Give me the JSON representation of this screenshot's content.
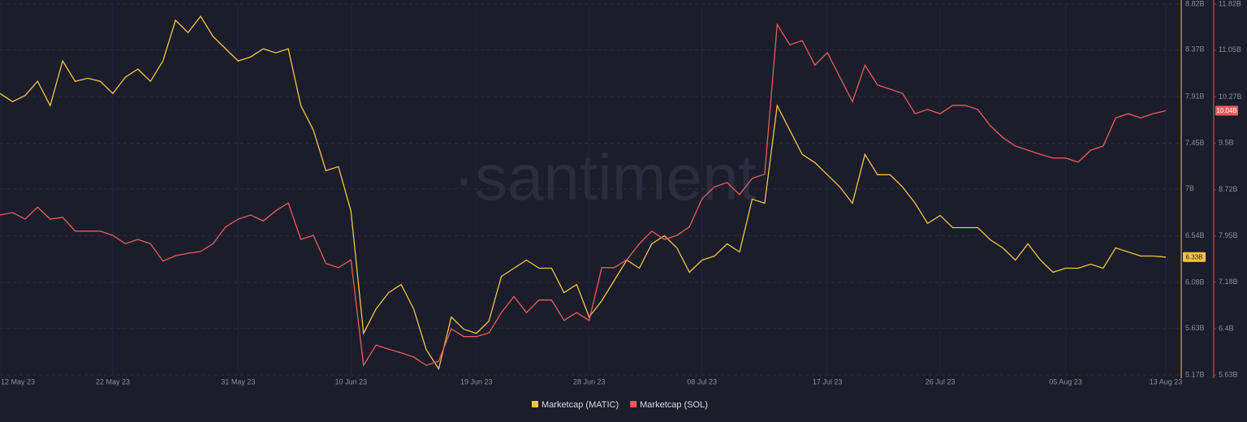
{
  "chart_data": {
    "type": "line",
    "watermark": "·santiment",
    "categories": [
      "12 May 23",
      null,
      null,
      null,
      null,
      null,
      null,
      null,
      null,
      "22 May 23",
      null,
      null,
      null,
      null,
      null,
      null,
      null,
      null,
      null,
      "31 May 23",
      null,
      null,
      null,
      null,
      null,
      null,
      null,
      null,
      "10 Jun 23",
      null,
      null,
      null,
      null,
      null,
      null,
      null,
      null,
      null,
      "19 Jun 23",
      null,
      null,
      null,
      null,
      null,
      null,
      null,
      null,
      "28 Jun 23",
      null,
      null,
      null,
      null,
      null,
      null,
      null,
      null,
      "08 Jul 23",
      null,
      null,
      null,
      null,
      null,
      null,
      null,
      null,
      null,
      "17 Jul 23",
      null,
      null,
      null,
      null,
      null,
      null,
      null,
      null,
      "26 Jul 23",
      null,
      null,
      null,
      null,
      null,
      null,
      null,
      null,
      null,
      "05 Aug 23",
      null,
      null,
      null,
      null,
      null,
      null,
      null,
      "13 Aug 23"
    ],
    "series": [
      {
        "name": "Marketcap (MATIC)",
        "color": "#f5c342",
        "axis": "y",
        "values": [
          7.94,
          7.86,
          7.92,
          8.06,
          7.82,
          8.26,
          8.06,
          8.09,
          8.06,
          7.94,
          8.1,
          8.18,
          8.06,
          8.26,
          8.66,
          8.54,
          8.7,
          8.5,
          8.38,
          8.26,
          8.3,
          8.38,
          8.34,
          8.38,
          7.82,
          7.58,
          7.18,
          7.22,
          6.78,
          5.58,
          5.82,
          5.98,
          6.06,
          5.82,
          5.42,
          5.23,
          5.74,
          5.62,
          5.58,
          5.7,
          6.14,
          6.22,
          6.3,
          6.22,
          6.22,
          5.98,
          6.06,
          5.74,
          5.9,
          6.1,
          6.3,
          6.22,
          6.46,
          6.54,
          6.42,
          6.18,
          6.3,
          6.34,
          6.46,
          6.38,
          6.9,
          6.86,
          7.82,
          7.58,
          7.34,
          7.26,
          7.14,
          7.02,
          6.86,
          7.34,
          7.14,
          7.14,
          7.02,
          6.86,
          6.66,
          6.74,
          6.62,
          6.62,
          6.62,
          6.5,
          6.42,
          6.3,
          6.46,
          6.3,
          6.18,
          6.22,
          6.22,
          6.26,
          6.22,
          6.42,
          6.38,
          6.34,
          6.34,
          6.33
        ],
        "value_labels": [
          null,
          null,
          null,
          null,
          null,
          null,
          null,
          null,
          null,
          null,
          null,
          null,
          null,
          null,
          null,
          null,
          null,
          null,
          null,
          null,
          null,
          null,
          null,
          null,
          null,
          null,
          null,
          null,
          null,
          null,
          null,
          null,
          null,
          null,
          null,
          null,
          null,
          null,
          null,
          null,
          null,
          null,
          null,
          null,
          null,
          null,
          null,
          null,
          null,
          null,
          null,
          null,
          null,
          null,
          null,
          null,
          null,
          null,
          null,
          null,
          null,
          null,
          null,
          null,
          null,
          null,
          null,
          null,
          null,
          null,
          null,
          null,
          null,
          null,
          null,
          null,
          null,
          null,
          null,
          null,
          null,
          null,
          null,
          null,
          null,
          null,
          null,
          null,
          null,
          null,
          null,
          null,
          null,
          "6.33B"
        ]
      },
      {
        "name": "Marketcap (SOL)",
        "color": "#ea5b5b",
        "axis": "y2",
        "values": [
          8.3,
          8.34,
          8.23,
          8.43,
          8.23,
          8.26,
          8.03,
          8.03,
          8.03,
          7.96,
          7.82,
          7.89,
          7.82,
          7.53,
          7.62,
          7.66,
          7.69,
          7.82,
          8.1,
          8.23,
          8.3,
          8.2,
          8.37,
          8.5,
          7.89,
          7.96,
          7.49,
          7.42,
          7.55,
          5.79,
          6.13,
          6.06,
          6.0,
          5.93,
          5.79,
          5.86,
          6.4,
          6.27,
          6.27,
          6.33,
          6.67,
          6.94,
          6.67,
          6.88,
          6.88,
          6.54,
          6.67,
          6.54,
          7.42,
          7.42,
          7.55,
          7.82,
          8.03,
          7.89,
          7.96,
          8.1,
          8.57,
          8.77,
          8.84,
          8.64,
          8.91,
          8.98,
          11.48,
          11.14,
          11.21,
          10.8,
          11.01,
          10.6,
          10.19,
          10.8,
          10.47,
          10.4,
          10.33,
          9.99,
          10.06,
          9.99,
          10.13,
          10.13,
          10.06,
          9.79,
          9.59,
          9.45,
          9.38,
          9.31,
          9.25,
          9.25,
          9.18,
          9.38,
          9.45,
          9.92,
          9.99,
          9.92,
          9.99,
          10.04
        ],
        "value_labels": [
          null,
          null,
          null,
          null,
          null,
          null,
          null,
          null,
          null,
          null,
          null,
          null,
          null,
          null,
          null,
          null,
          null,
          null,
          null,
          null,
          null,
          null,
          null,
          null,
          null,
          null,
          null,
          null,
          null,
          null,
          null,
          null,
          null,
          null,
          null,
          null,
          null,
          null,
          null,
          null,
          null,
          null,
          null,
          null,
          null,
          null,
          null,
          null,
          null,
          null,
          null,
          null,
          null,
          null,
          null,
          null,
          null,
          null,
          null,
          null,
          null,
          null,
          null,
          null,
          null,
          null,
          null,
          null,
          null,
          null,
          null,
          null,
          null,
          null,
          null,
          null,
          null,
          null,
          null,
          null,
          null,
          null,
          null,
          null,
          null,
          null,
          null,
          null,
          null,
          null,
          null,
          null,
          null,
          "10.04B"
        ]
      }
    ],
    "ylim": [
      5.17,
      8.82
    ],
    "yticks": [
      {
        "value": 8.82,
        "label": "8.82B"
      },
      {
        "value": 8.37,
        "label": "8.37B"
      },
      {
        "value": 7.91,
        "label": "7.91B"
      },
      {
        "value": 7.45,
        "label": "7.45B"
      },
      {
        "value": 7,
        "label": "7B"
      },
      {
        "value": 6.54,
        "label": "6.54B"
      },
      {
        "value": 6.08,
        "label": "6.08B"
      },
      {
        "value": 5.63,
        "label": "5.63B"
      },
      {
        "value": 5.17,
        "label": "5.17B"
      }
    ],
    "y2lim": [
      5.63,
      11.82
    ],
    "y2ticks": [
      {
        "value": 11.82,
        "label": "11.82B"
      },
      {
        "value": 11.05,
        "label": "11.05B"
      },
      {
        "value": 10.27,
        "label": "10.27B"
      },
      {
        "value": 9.5,
        "label": "9.5B"
      },
      {
        "value": 8.72,
        "label": "8.72B"
      },
      {
        "value": 7.95,
        "label": "7.95B"
      },
      {
        "value": 7.18,
        "label": "7.18B"
      },
      {
        "value": 6.4,
        "label": "6.4B"
      },
      {
        "value": 5.63,
        "label": "5.63B"
      }
    ],
    "grid": true,
    "legend_position": "bottom"
  }
}
